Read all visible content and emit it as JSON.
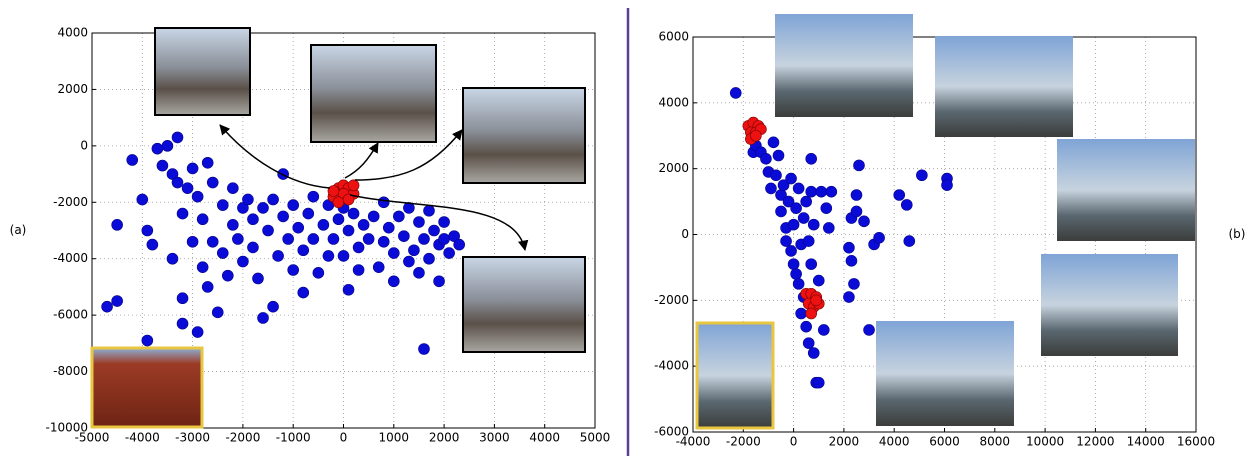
{
  "chart_data": [
    {
      "type": "scatter",
      "label": "(a)",
      "xlim": [
        -5000,
        5000
      ],
      "ylim": [
        -10000,
        4000
      ],
      "xticks": [
        -5000,
        -4000,
        -3000,
        -2000,
        -1000,
        0,
        1000,
        2000,
        3000,
        4000,
        5000
      ],
      "yticks": [
        -10000,
        -8000,
        -6000,
        -4000,
        -2000,
        0,
        2000,
        4000
      ],
      "grid": true,
      "series": [
        {
          "color": "#0b0bd8",
          "x": [
            -4700,
            -4500,
            -4500,
            -4200,
            -4000,
            -3900,
            -3900,
            -3800,
            -3700,
            -3600,
            -3500,
            -3400,
            -3400,
            -3300,
            -3300,
            -3200,
            -3200,
            -3200,
            -3100,
            -3000,
            -3000,
            -2900,
            -2900,
            -2800,
            -2800,
            -2700,
            -2700,
            -2600,
            -2600,
            -2500,
            -2400,
            -2400,
            -2300,
            -2200,
            -2200,
            -2100,
            -2000,
            -2000,
            -1900,
            -1800,
            -1800,
            -1700,
            -1600,
            -1600,
            -1500,
            -1400,
            -1400,
            -1300,
            -1200,
            -1200,
            -1100,
            -1000,
            -1000,
            -900,
            -800,
            -800,
            -700,
            -600,
            -600,
            -500,
            -400,
            -300,
            -300,
            -200,
            -100,
            0,
            0,
            100,
            100,
            200,
            300,
            300,
            400,
            500,
            600,
            700,
            800,
            800,
            900,
            1000,
            1000,
            1100,
            1200,
            1300,
            1300,
            1400,
            1500,
            1500,
            1600,
            1600,
            1700,
            1700,
            1800,
            1900,
            1900,
            2000,
            2000,
            2100,
            2200,
            2300
          ],
          "y": [
            -5700,
            -5500,
            -2800,
            -500,
            -1900,
            -6900,
            -3000,
            -3500,
            -100,
            -700,
            0,
            -1000,
            -4000,
            300,
            -1300,
            -2400,
            -5400,
            -6300,
            -1500,
            -800,
            -3400,
            -6600,
            -1800,
            -2600,
            -4300,
            -600,
            -5000,
            -3400,
            -1300,
            -5900,
            -3800,
            -2100,
            -4600,
            -1500,
            -2800,
            -3300,
            -2200,
            -4100,
            -1900,
            -2600,
            -3600,
            -4700,
            -6100,
            -2200,
            -3000,
            -5700,
            -1900,
            -3900,
            -2500,
            -1000,
            -3300,
            -4400,
            -2100,
            -2900,
            -3700,
            -5200,
            -2400,
            -1800,
            -3300,
            -4500,
            -2800,
            -3900,
            -2100,
            -3300,
            -2600,
            -2200,
            -3900,
            -5100,
            -3000,
            -2400,
            -3600,
            -4400,
            -2800,
            -3300,
            -2500,
            -4300,
            -3400,
            -2000,
            -2900,
            -3800,
            -4800,
            -2500,
            -3200,
            -4100,
            -2200,
            -3700,
            -2700,
            -4500,
            -7200,
            -3300,
            -2300,
            -4000,
            -3000,
            -3500,
            -4800,
            -2700,
            -3300,
            -3800,
            -3200,
            -3500
          ]
        },
        {
          "color": "#ee1111",
          "x": [
            -100,
            0,
            100,
            -200,
            0,
            200,
            -100,
            100,
            -200,
            200
          ],
          "y": [
            -1500,
            -1400,
            -1500,
            -1800,
            -1700,
            -1700,
            -2000,
            -1900,
            -1600,
            -1400
          ]
        }
      ]
    },
    {
      "type": "scatter",
      "label": "(b)",
      "xlim": [
        -4000,
        16000
      ],
      "ylim": [
        -6000,
        6000
      ],
      "xticks": [
        -4000,
        -2000,
        0,
        2000,
        4000,
        6000,
        8000,
        10000,
        12000,
        14000,
        16000
      ],
      "yticks": [
        -6000,
        -4000,
        -2000,
        0,
        2000,
        4000,
        6000
      ],
      "grid": true,
      "series": [
        {
          "color": "#0b0bd8",
          "x": [
            -2300,
            -1600,
            -1500,
            -1300,
            -1100,
            -1000,
            -900,
            -800,
            -700,
            -600,
            -500,
            -500,
            -400,
            -300,
            -300,
            -200,
            -100,
            -100,
            0,
            0,
            100,
            100,
            200,
            200,
            300,
            300,
            400,
            400,
            500,
            500,
            600,
            600,
            700,
            700,
            800,
            800,
            900,
            1000,
            1000,
            1100,
            1200,
            1300,
            1400,
            1500,
            2200,
            2300,
            2400,
            2200,
            2500,
            2600,
            2800,
            3000,
            3200,
            3400,
            4200,
            4500,
            4600,
            5100,
            6100,
            6100,
            700,
            2300,
            2500
          ],
          "y": [
            4300,
            2500,
            2700,
            2500,
            2300,
            1900,
            1400,
            2800,
            1800,
            2400,
            1200,
            700,
            1500,
            200,
            -200,
            1000,
            -500,
            1700,
            -900,
            300,
            -1200,
            800,
            -1500,
            1400,
            -300,
            -2400,
            500,
            -1900,
            1000,
            -2800,
            -200,
            -3300,
            1300,
            -900,
            -3600,
            300,
            -4500,
            -4500,
            -1400,
            1300,
            -2900,
            800,
            200,
            1300,
            -400,
            -800,
            -1500,
            -1900,
            1200,
            2100,
            400,
            -2900,
            -300,
            -100,
            1200,
            900,
            -200,
            1800,
            1700,
            1500,
            2300,
            500,
            700
          ]
        },
        {
          "color": "#ee1111",
          "x": [
            -1800,
            -1600,
            -1400,
            -1700,
            -1500,
            -1300,
            -1700,
            -1500,
            500,
            700,
            900,
            600,
            800,
            1000,
            700,
            900
          ],
          "y": [
            3300,
            3400,
            3300,
            3100,
            3100,
            3200,
            2900,
            3000,
            -1800,
            -1800,
            -1900,
            -2100,
            -2200,
            -2100,
            -2400,
            -2000
          ]
        }
      ]
    }
  ]
}
